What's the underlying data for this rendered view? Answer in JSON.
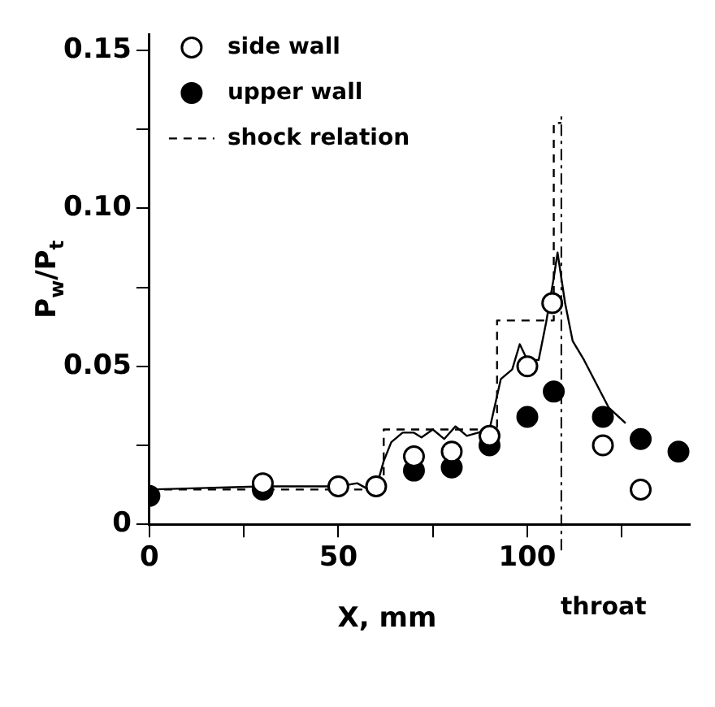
{
  "chart_data": {
    "type": "scatter",
    "xlabel": "X, mm",
    "ylabel": "P$_{w}$/P$_{t}$",
    "xlim": [
      0,
      143
    ],
    "ylim": [
      0,
      0.155
    ],
    "xticks": [
      0,
      {
        "value": 25,
        "label": null
      },
      50,
      {
        "value": 75,
        "label": null
      },
      100,
      {
        "value": 125,
        "label": null
      }
    ],
    "yticks": [
      {
        "value": 0,
        "label": "0"
      },
      {
        "value": 0.025,
        "label": null
      },
      0.05,
      {
        "value": 0.075,
        "label": null
      },
      {
        "value": 0.1,
        "label": "0.10"
      },
      {
        "value": 0.125,
        "label": null
      },
      0.15
    ],
    "grid": false,
    "legend": "top left",
    "ref_lines": [
      {
        "axis": "x",
        "value": 109,
        "label": "throat",
        "line_style": "dashed",
        "color": "#000000"
      }
    ],
    "series": [
      {
        "name": "side wall",
        "marker": "circle",
        "color": "#ffffff",
        "x": [
          30,
          50,
          60,
          70,
          80,
          90,
          100,
          106.6,
          120,
          130
        ],
        "values": [
          0.013,
          0.012,
          0.012,
          0.0215,
          0.023,
          0.028,
          0.05,
          0.07,
          0.025,
          0.011
        ]
      },
      {
        "name": "upper wall",
        "marker": "circle",
        "color": "#000000",
        "x": [
          0,
          30,
          70,
          80,
          90,
          100,
          107,
          120,
          130,
          140
        ],
        "values": [
          0.009,
          0.011,
          0.017,
          0.018,
          0.025,
          0.034,
          0.042,
          0.034,
          0.027,
          0.023
        ]
      },
      {
        "name": "shock relation",
        "type": "line",
        "marker": "none",
        "line_style": "dashed",
        "color": "#000000",
        "x": [
          0,
          62,
          62,
          92,
          92,
          107,
          107,
          109
        ],
        "values": [
          0.011,
          0.011,
          0.03,
          0.03,
          0.0645,
          0.0645,
          0.127,
          0.127
        ]
      },
      {
        "type": "line",
        "marker": "none",
        "line_style": "solid",
        "color": "#000000",
        "x": [
          0,
          30,
          50,
          55,
          58,
          60,
          62,
          64,
          67,
          70,
          72,
          75,
          78,
          81,
          84,
          87,
          90,
          93,
          96,
          98,
          100,
          103,
          105,
          107,
          108,
          109,
          110,
          112,
          115,
          121.5,
          126
        ],
        "values": [
          0.011,
          0.012,
          0.012,
          0.013,
          0.011,
          0.0115,
          0.02,
          0.026,
          0.029,
          0.029,
          0.0275,
          0.03,
          0.027,
          0.031,
          0.028,
          0.029,
          0.03,
          0.046,
          0.049,
          0.057,
          0.052,
          0.052,
          0.064,
          0.078,
          0.086,
          0.078,
          0.07,
          0.058,
          0.052,
          0.037,
          0.032
        ]
      }
    ]
  }
}
